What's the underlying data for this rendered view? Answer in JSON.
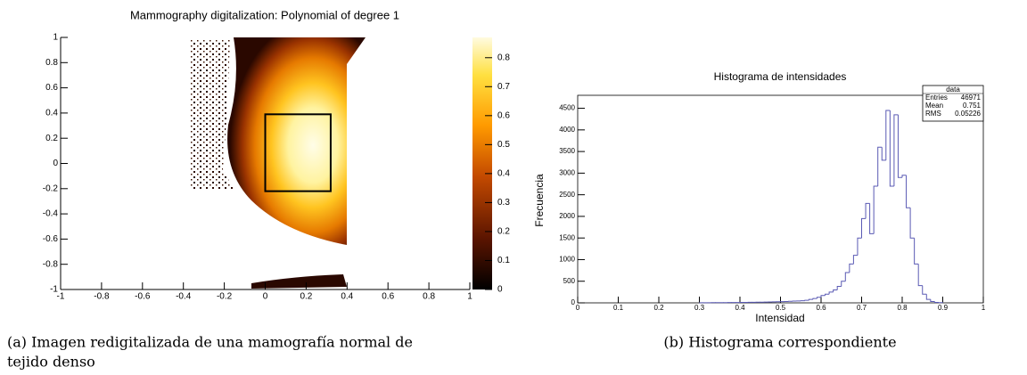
{
  "chart_data": [
    {
      "type": "heatmap",
      "title": "Mammography digitalization: Polynomial of degree 1",
      "xlim": [
        -1,
        1
      ],
      "xticks": [
        -1,
        -0.8,
        -0.6,
        -0.4,
        -0.2,
        0,
        0.2,
        0.4,
        0.6,
        0.8,
        1
      ],
      "ylim": [
        -1,
        1
      ],
      "yticks": [
        -1,
        -0.8,
        -0.6,
        -0.4,
        -0.2,
        0,
        0.2,
        0.4,
        0.6,
        0.8,
        1
      ],
      "zlim": [
        0,
        0.87
      ],
      "zticks": [
        0,
        0.1,
        0.2,
        0.3,
        0.4,
        0.5,
        0.6,
        0.7,
        0.8
      ],
      "roi": {
        "x": [
          0,
          0.32
        ],
        "y": [
          -0.22,
          0.39
        ]
      }
    },
    {
      "type": "histogram",
      "title": "Histograma de intensidades",
      "xlabel": "Intensidad",
      "ylabel": "Frecuencia",
      "color": "#5a5ab4",
      "xlim": [
        0,
        1
      ],
      "xticks": [
        0,
        0.1,
        0.2,
        0.3,
        0.4,
        0.5,
        0.6,
        0.7,
        0.8,
        0.9,
        1
      ],
      "ylim": [
        0,
        4800
      ],
      "yticks": [
        0,
        500,
        1000,
        1500,
        2000,
        2500,
        3000,
        3500,
        4000,
        4500
      ],
      "bins": [
        0.3,
        0.31,
        0.32,
        0.33,
        0.34,
        0.35,
        0.36,
        0.37,
        0.38,
        0.39,
        0.4,
        0.41,
        0.42,
        0.43,
        0.44,
        0.45,
        0.46,
        0.47,
        0.48,
        0.49,
        0.5,
        0.51,
        0.52,
        0.53,
        0.54,
        0.55,
        0.56,
        0.57,
        0.58,
        0.59,
        0.6,
        0.61,
        0.62,
        0.63,
        0.64,
        0.65,
        0.66,
        0.67,
        0.68,
        0.69,
        0.7,
        0.71,
        0.72,
        0.73,
        0.74,
        0.75,
        0.76,
        0.77,
        0.78,
        0.79,
        0.8,
        0.81,
        0.82,
        0.83,
        0.84,
        0.85,
        0.86,
        0.87,
        0.88,
        0.89,
        0.9
      ],
      "values": [
        2,
        3,
        3,
        4,
        5,
        5,
        6,
        7,
        8,
        9,
        10,
        11,
        12,
        13,
        15,
        16,
        18,
        20,
        22,
        25,
        28,
        32,
        36,
        40,
        45,
        50,
        60,
        80,
        100,
        130,
        170,
        200,
        250,
        300,
        380,
        500,
        700,
        900,
        1100,
        1500,
        1950,
        2300,
        1600,
        2700,
        3600,
        3300,
        4450,
        2700,
        4350,
        2900,
        2950,
        2200,
        1500,
        900,
        400,
        200,
        80,
        30,
        10,
        5
      ],
      "stats": {
        "title": "data",
        "rows": [
          [
            "Entries",
            46971
          ],
          [
            "Mean",
            0.751
          ],
          [
            "RMS",
            0.05226
          ]
        ]
      }
    }
  ],
  "captions": [
    "(a) Imagen redigitalizada de una mamografía normal de",
    "tejido denso",
    "(b) Histograma correspondiente"
  ]
}
